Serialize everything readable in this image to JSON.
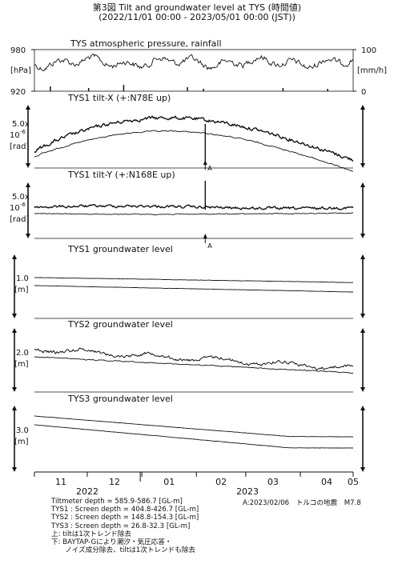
{
  "header": {
    "title_line1": "第3図 Tilt and groundwater level at TYS (時間値)",
    "title_line2": "(2022/11/01 00:00 - 2023/05/01 00:00 (JST))"
  },
  "chart_data": {
    "type": "line",
    "time_axis": {
      "range": [
        "2022-11-01",
        "2023-05-01"
      ],
      "month_ticks": [
        "11",
        "12",
        "01",
        "02",
        "03",
        "04",
        "05"
      ],
      "year_labels": [
        "2022",
        "2023"
      ]
    },
    "event_marker": {
      "label": "A",
      "date": "2023-02-06"
    },
    "panels": [
      {
        "id": "pressure-rainfall",
        "title": "TYS atmospheric pressure, rainfall",
        "left_ticks": [
          "980",
          "[hPa]",
          "920"
        ],
        "right_ticks": [
          "100",
          "[mm/h]",
          "0"
        ],
        "ylim_left": [
          920,
          980
        ],
        "ylim_right": [
          0,
          100
        ]
      },
      {
        "id": "tilt-x",
        "title": "TYS1 tilt-X (+:N78E up)",
        "scale_label": [
          "5.0x",
          "10",
          "-6",
          "[rad]"
        ],
        "marker": "A"
      },
      {
        "id": "tilt-y",
        "title": "TYS1 tilt-Y (+:N168E up)",
        "scale_label": [
          "5.0x",
          "10",
          "-6",
          "[rad]"
        ],
        "marker": "A"
      },
      {
        "id": "tys1-gw",
        "title": "TYS1 groundwater level",
        "scale_label": [
          "1.0",
          "[m]"
        ]
      },
      {
        "id": "tys2-gw",
        "title": "TYS2 groundwater level",
        "scale_label": [
          "2.0",
          "[m]"
        ]
      },
      {
        "id": "tys3-gw",
        "title": "TYS3 groundwater level",
        "scale_label": [
          "3.0",
          "[m]"
        ]
      }
    ]
  },
  "notes": {
    "lines": [
      "Tiltmeter depth = 585.9-586.7 [GL-m]",
      "TYS1 : Screen depth = 404.8-426.7 [GL-m]",
      "TYS2 : Screen depth = 148.8-154.3 [GL-m]",
      "TYS3 : Screen depth = 26.8-32.3 [GL-m]",
      "上: tiltは1次トレンド除去",
      "下: BAYTAP-Gにより潮汐・気圧応答・",
      "　　ノイズ成分除去、tiltは1次トレンドも除去"
    ],
    "event_note": "A:2023/02/06　トルコの地震　M7.8"
  }
}
